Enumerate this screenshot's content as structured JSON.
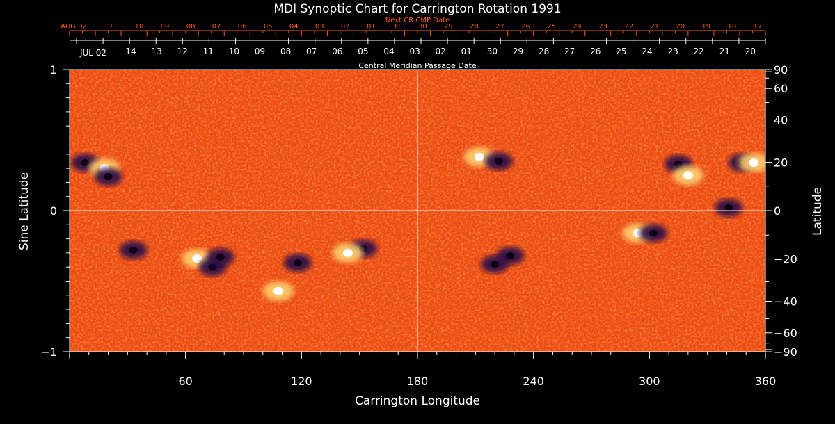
{
  "chart_data": {
    "type": "heatmap",
    "title": "MDI Synoptic Chart for Carrington Rotation 1991",
    "xlabel": "Carrington Longitude",
    "ylabel_left": "Sine Latitude",
    "ylabel_right": "Latitude",
    "xlim": [
      0,
      360
    ],
    "ylim": [
      -1,
      1
    ],
    "x_ticks": [
      60,
      120,
      180,
      240,
      300,
      360
    ],
    "y_ticks_left": [
      {
        "value": -1,
        "label": "−1"
      },
      {
        "value": 0,
        "label": "0"
      },
      {
        "value": 1,
        "label": "1"
      }
    ],
    "y_ticks_right": [
      90,
      60,
      40,
      20,
      0,
      -20,
      -40,
      -60,
      -90
    ],
    "reference_lines": {
      "longitude": 180,
      "sine_latitude": 0
    },
    "top_axis_label": "Central Meridian Passage Date",
    "top_axis_labels": [
      "JUL 02",
      "14",
      "13",
      "12",
      "11",
      "10",
      "09",
      "08",
      "07",
      "06",
      "05",
      "04",
      "03",
      "02",
      "01",
      "30",
      "29",
      "28",
      "27",
      "26",
      "25",
      "24",
      "23",
      "22",
      "21",
      "20"
    ],
    "next_axis_label": "Next CR CMP Date",
    "next_axis_labels": [
      "AUG 02",
      "11",
      "10",
      "09",
      "08",
      "07",
      "06",
      "05",
      "04",
      "03",
      "02",
      "01",
      "31",
      "30",
      "29",
      "28",
      "27",
      "26",
      "25",
      "24",
      "23",
      "22",
      "21",
      "20",
      "19",
      "18",
      "17"
    ],
    "colormap": [
      "#1a0a3a",
      "#cc2200",
      "#ff5a14",
      "#ffa040",
      "#ffffff"
    ],
    "active_regions": [
      {
        "lon": 8,
        "sinlat": 0.34,
        "sign": "negative"
      },
      {
        "lon": 18,
        "sinlat": 0.3,
        "sign": "positive"
      },
      {
        "lon": 20,
        "sinlat": 0.24,
        "sign": "negative"
      },
      {
        "lon": 33,
        "sinlat": -0.28,
        "sign": "negative"
      },
      {
        "lon": 66,
        "sinlat": -0.34,
        "sign": "positive"
      },
      {
        "lon": 74,
        "sinlat": -0.4,
        "sign": "negative"
      },
      {
        "lon": 78,
        "sinlat": -0.33,
        "sign": "negative"
      },
      {
        "lon": 108,
        "sinlat": -0.57,
        "sign": "positive"
      },
      {
        "lon": 118,
        "sinlat": -0.37,
        "sign": "negative"
      },
      {
        "lon": 152,
        "sinlat": -0.27,
        "sign": "negative"
      },
      {
        "lon": 144,
        "sinlat": -0.3,
        "sign": "positive"
      },
      {
        "lon": 212,
        "sinlat": 0.38,
        "sign": "positive"
      },
      {
        "lon": 222,
        "sinlat": 0.35,
        "sign": "negative"
      },
      {
        "lon": 228,
        "sinlat": -0.32,
        "sign": "negative"
      },
      {
        "lon": 220,
        "sinlat": -0.38,
        "sign": "negative"
      },
      {
        "lon": 294,
        "sinlat": -0.16,
        "sign": "positive"
      },
      {
        "lon": 302,
        "sinlat": -0.16,
        "sign": "negative"
      },
      {
        "lon": 315,
        "sinlat": 0.33,
        "sign": "negative"
      },
      {
        "lon": 320,
        "sinlat": 0.25,
        "sign": "positive"
      },
      {
        "lon": 348,
        "sinlat": 0.34,
        "sign": "negative"
      },
      {
        "lon": 354,
        "sinlat": 0.34,
        "sign": "positive"
      },
      {
        "lon": 341,
        "sinlat": 0.02,
        "sign": "negative"
      }
    ]
  }
}
